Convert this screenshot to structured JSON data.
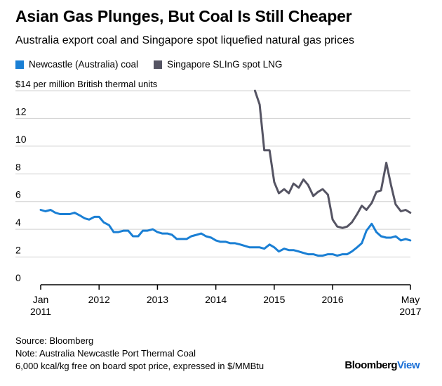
{
  "header": {
    "title": "Asian Gas Plunges, But Coal Is Still Cheaper",
    "subtitle": "Australia export coal and Singapore spot liquefied natural gas prices"
  },
  "footer": {
    "source": "Source: Bloomberg",
    "note_line1": "Note: Australia Newcastle Port Thermal Coal",
    "note_line2": "6,000 kcal/kg free on board spot price, expressed in $/MMBtu",
    "brand_main": "Bloomberg",
    "brand_accent": "View"
  },
  "colors": {
    "coal": "#1a7fd4",
    "lng": "#555463",
    "grid": "#d0d0d0",
    "axis": "#000000"
  },
  "chart_data": {
    "type": "line",
    "title": "Asian Gas Plunges, But Coal Is Still Cheaper",
    "subtitle": "Australia export coal and Singapore spot liquefied natural gas prices",
    "ylabel": "$14 per million British thermal units",
    "ylim": [
      0,
      14
    ],
    "y_ticks": [
      0,
      2,
      4,
      6,
      8,
      10,
      12,
      14
    ],
    "y_tick_labels": [
      "0",
      "2",
      "4",
      "6",
      "8",
      "10",
      "12",
      "$14 per million British thermal units"
    ],
    "xlim": [
      2011.0,
      2017.333
    ],
    "x_ticks": [
      {
        "value": 2011.0,
        "line1": "Jan",
        "line2": "2011"
      },
      {
        "value": 2012.0,
        "line1": "2012",
        "line2": ""
      },
      {
        "value": 2013.0,
        "line1": "2013",
        "line2": ""
      },
      {
        "value": 2014.0,
        "line1": "2014",
        "line2": ""
      },
      {
        "value": 2015.0,
        "line1": "2015",
        "line2": ""
      },
      {
        "value": 2016.0,
        "line1": "2016",
        "line2": ""
      },
      {
        "value": 2017.333,
        "line1": "May",
        "line2": "2017"
      }
    ],
    "grid": true,
    "legend_position": "top-left",
    "series": [
      {
        "name": "Newcastle (Australia) coal",
        "x": [
          2011.0,
          2011.08,
          2011.17,
          2011.25,
          2011.33,
          2011.42,
          2011.5,
          2011.58,
          2011.67,
          2011.75,
          2011.83,
          2011.92,
          2012.0,
          2012.08,
          2012.17,
          2012.25,
          2012.33,
          2012.42,
          2012.5,
          2012.58,
          2012.67,
          2012.75,
          2012.83,
          2012.92,
          2013.0,
          2013.08,
          2013.17,
          2013.25,
          2013.33,
          2013.42,
          2013.5,
          2013.58,
          2013.67,
          2013.75,
          2013.83,
          2013.92,
          2014.0,
          2014.08,
          2014.17,
          2014.25,
          2014.33,
          2014.42,
          2014.5,
          2014.58,
          2014.67,
          2014.75,
          2014.83,
          2014.92,
          2015.0,
          2015.08,
          2015.17,
          2015.25,
          2015.33,
          2015.42,
          2015.5,
          2015.58,
          2015.67,
          2015.75,
          2015.83,
          2015.92,
          2016.0,
          2016.08,
          2016.17,
          2016.25,
          2016.33,
          2016.42,
          2016.5,
          2016.58,
          2016.67,
          2016.75,
          2016.83,
          2016.92,
          2017.0,
          2017.08,
          2017.17,
          2017.25,
          2017.33
        ],
        "values": [
          5.4,
          5.3,
          5.4,
          5.2,
          5.1,
          5.1,
          5.1,
          5.2,
          5.0,
          4.8,
          4.7,
          4.9,
          4.9,
          4.5,
          4.3,
          3.8,
          3.8,
          3.9,
          3.9,
          3.5,
          3.5,
          3.9,
          3.9,
          4.0,
          3.8,
          3.7,
          3.7,
          3.6,
          3.3,
          3.3,
          3.3,
          3.5,
          3.6,
          3.7,
          3.5,
          3.4,
          3.2,
          3.1,
          3.1,
          3.0,
          3.0,
          2.9,
          2.8,
          2.7,
          2.7,
          2.7,
          2.6,
          2.9,
          2.7,
          2.4,
          2.6,
          2.5,
          2.5,
          2.4,
          2.3,
          2.2,
          2.2,
          2.1,
          2.1,
          2.2,
          2.2,
          2.1,
          2.2,
          2.2,
          2.4,
          2.7,
          3.0,
          3.9,
          4.4,
          3.8,
          3.5,
          3.4,
          3.4,
          3.5,
          3.2,
          3.3,
          3.2
        ]
      },
      {
        "name": "Singapore SLInG spot LNG",
        "x": [
          2014.67,
          2014.75,
          2014.83,
          2014.92,
          2015.0,
          2015.08,
          2015.17,
          2015.25,
          2015.33,
          2015.42,
          2015.5,
          2015.58,
          2015.67,
          2015.75,
          2015.83,
          2015.92,
          2016.0,
          2016.08,
          2016.17,
          2016.25,
          2016.33,
          2016.42,
          2016.5,
          2016.58,
          2016.67,
          2016.75,
          2016.83,
          2016.92,
          2017.0,
          2017.08,
          2017.17,
          2017.25,
          2017.33
        ],
        "values": [
          14.0,
          13.0,
          9.7,
          9.7,
          7.4,
          6.6,
          6.9,
          6.6,
          7.3,
          7.0,
          7.6,
          7.2,
          6.4,
          6.7,
          6.9,
          6.5,
          4.7,
          4.2,
          4.1,
          4.2,
          4.5,
          5.1,
          5.7,
          5.4,
          5.9,
          6.7,
          6.8,
          8.8,
          7.2,
          5.8,
          5.3,
          5.4,
          5.2
        ]
      }
    ]
  }
}
